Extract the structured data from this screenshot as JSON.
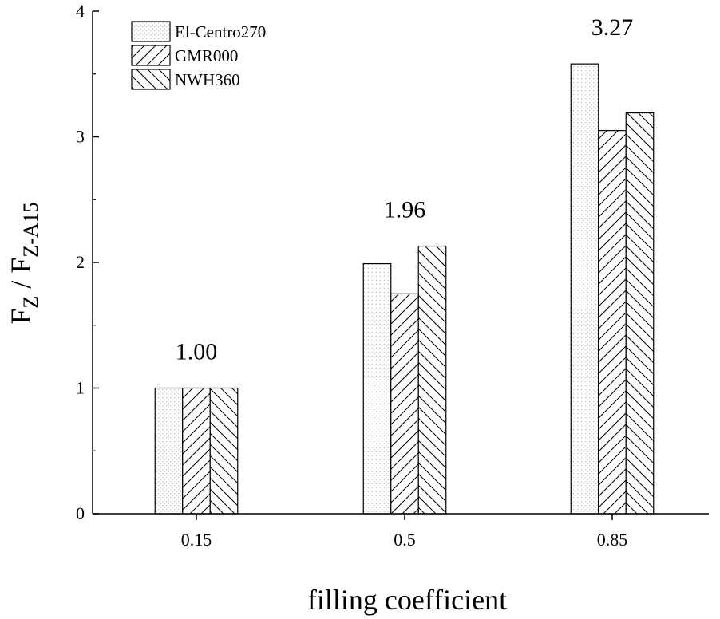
{
  "chart_data": {
    "type": "bar",
    "categories": [
      "0.15",
      "0.5",
      "0.85"
    ],
    "series": [
      {
        "name": "El-Centro270",
        "pattern": "dots",
        "values": [
          1.0,
          1.99,
          3.58
        ]
      },
      {
        "name": "GMR000",
        "pattern": "forward-hatch",
        "values": [
          1.0,
          1.75,
          3.05
        ]
      },
      {
        "name": "NWH360",
        "pattern": "back-hatch",
        "values": [
          1.0,
          2.13,
          3.19
        ]
      }
    ],
    "annotations": [
      "1.00",
      "1.96",
      "3.27"
    ],
    "xlabel": "filling coefficient",
    "ylabel": {
      "main": "F",
      "sub1": "Z",
      "sep": " / F",
      "sub2": "Z-A15"
    },
    "ylim": [
      0,
      4
    ],
    "yticks": [
      "0",
      "1",
      "2",
      "3",
      "4"
    ],
    "grid": false,
    "legend_position": "top-left",
    "colors": {
      "stroke": "#000000",
      "fill": "#ffffff",
      "dots": "#9a9a9a"
    }
  }
}
